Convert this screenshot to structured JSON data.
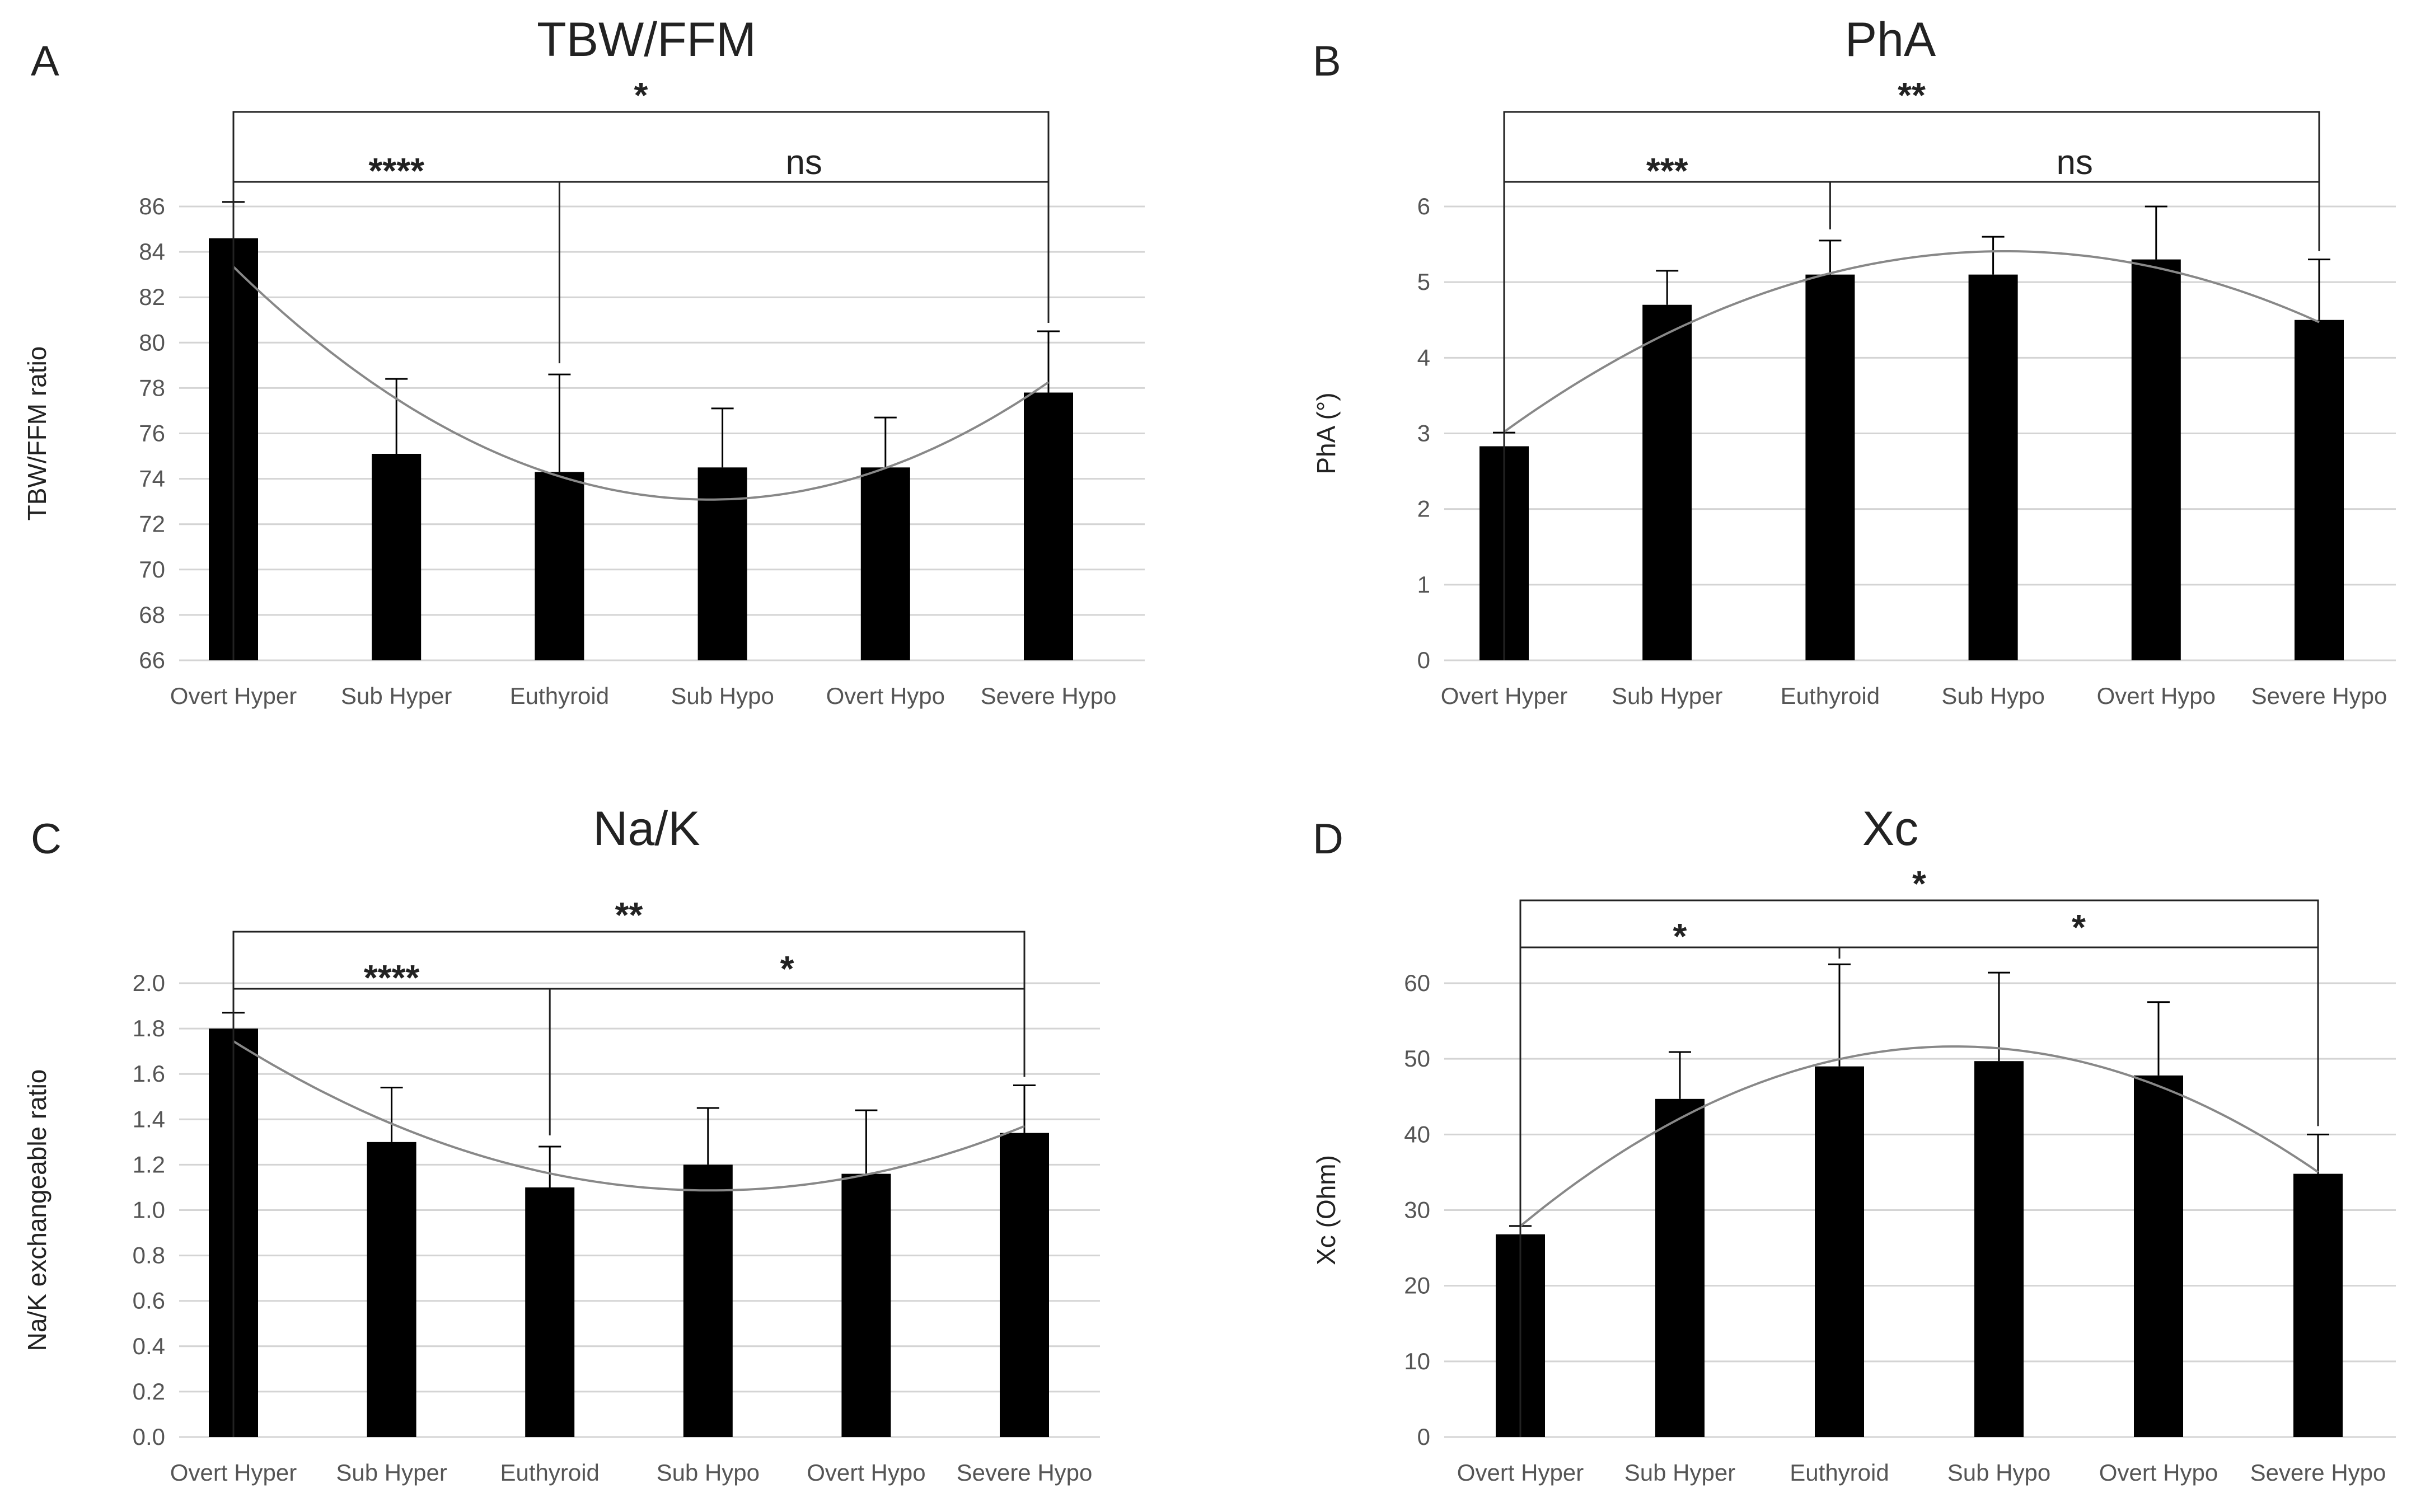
{
  "chart_data": [
    {
      "panel": "A",
      "type": "bar",
      "title": "TBW/FFM",
      "xlabel": "",
      "ylabel": "TBW/FFM ratio",
      "categories": [
        "Overt Hyper",
        "Sub Hyper",
        "Euthyroid",
        "Sub Hypo",
        "Overt Hypo",
        "Severe Hypo"
      ],
      "values": [
        84.6,
        75.1,
        74.3,
        74.5,
        74.5,
        77.8
      ],
      "error": [
        1.6,
        3.3,
        4.3,
        2.6,
        2.2,
        2.7
      ],
      "ylim": [
        66,
        86
      ],
      "yticks": [
        "66",
        "68",
        "70",
        "72",
        "74",
        "76",
        "78",
        "80",
        "82",
        "84",
        "86"
      ],
      "trendline": "polynomial",
      "grid": true,
      "annotations": [
        {
          "text": "*",
          "from": 0,
          "to": 5
        },
        {
          "text": "****",
          "from": 0,
          "to": 2
        },
        {
          "text": "ns",
          "from": 2,
          "to": 5
        }
      ]
    },
    {
      "panel": "B",
      "type": "bar",
      "title": "PhA",
      "xlabel": "",
      "ylabel": "PhA (°)",
      "categories": [
        "Overt Hyper",
        "Sub Hyper",
        "Euthyroid",
        "Sub Hypo",
        "Overt Hypo",
        "Severe Hypo"
      ],
      "values": [
        2.83,
        4.7,
        5.1,
        5.1,
        5.3,
        4.5
      ],
      "error": [
        0.18,
        0.45,
        0.45,
        0.5,
        0.7,
        0.8
      ],
      "ylim": [
        0,
        6
      ],
      "yticks": [
        "0",
        "1",
        "2",
        "3",
        "4",
        "5",
        "6"
      ],
      "trendline": "polynomial",
      "grid": true,
      "annotations": [
        {
          "text": "**",
          "from": 0,
          "to": 5
        },
        {
          "text": "***",
          "from": 0,
          "to": 2
        },
        {
          "text": "ns",
          "from": 2,
          "to": 5
        }
      ]
    },
    {
      "panel": "C",
      "type": "bar",
      "title": "Na/K",
      "xlabel": "",
      "ylabel": "Na/K exchangeable ratio",
      "categories": [
        "Overt Hyper",
        "Sub Hyper",
        "Euthyroid",
        "Sub Hypo",
        "Overt Hypo",
        "Severe Hypo"
      ],
      "values": [
        1.8,
        1.3,
        1.1,
        1.2,
        1.16,
        1.34
      ],
      "error": [
        0.07,
        0.24,
        0.18,
        0.25,
        0.28,
        0.21
      ],
      "ylim": [
        0,
        2.0
      ],
      "yticks": [
        "0.0",
        "0.2",
        "0.4",
        "0.6",
        "0.8",
        "1.0",
        "1.2",
        "1.4",
        "1.6",
        "1.8",
        "2.0"
      ],
      "trendline": "polynomial",
      "grid": true,
      "annotations": [
        {
          "text": "**",
          "from": 0,
          "to": 5
        },
        {
          "text": "****",
          "from": 0,
          "to": 2
        },
        {
          "text": "*",
          "from": 2,
          "to": 5
        }
      ]
    },
    {
      "panel": "D",
      "type": "bar",
      "title": "Xc",
      "xlabel": "",
      "ylabel": "Xc (Ohm)",
      "categories": [
        "Overt Hyper",
        "Sub Hyper",
        "Euthyroid",
        "Sub Hypo",
        "Overt Hypo",
        "Severe Hypo"
      ],
      "values": [
        26.8,
        44.7,
        49.0,
        49.7,
        47.8,
        34.8
      ],
      "error": [
        1.1,
        6.2,
        13.5,
        11.7,
        9.7,
        5.2
      ],
      "ylim": [
        0,
        60
      ],
      "yticks": [
        "0",
        "10",
        "20",
        "30",
        "40",
        "50",
        "60"
      ],
      "trendline": "polynomial",
      "grid": true,
      "annotations": [
        {
          "text": "*",
          "from": 0,
          "to": 5
        },
        {
          "text": "*",
          "from": 0,
          "to": 2
        },
        {
          "text": "*",
          "from": 2,
          "to": 5
        }
      ]
    }
  ]
}
